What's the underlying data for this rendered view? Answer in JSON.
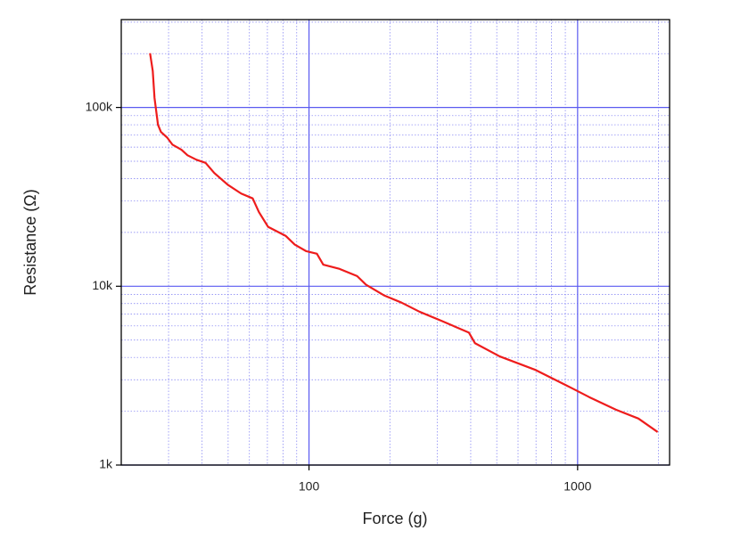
{
  "chart_data": {
    "type": "line",
    "xlabel": "Force (g)",
    "ylabel": "Resistance (Ω)",
    "x": [
      25.6,
      26.2,
      26.6,
      27.4,
      28.1,
      29.7,
      31,
      33.5,
      35.3,
      38.1,
      41.2,
      44.4,
      49.8,
      55.9,
      61.7,
      65.1,
      70.4,
      82,
      88.5,
      97.7,
      107,
      113,
      130,
      151,
      163,
      190,
      221,
      258,
      312,
      394,
      415,
      513,
      698,
      948,
      1104,
      1389,
      1684,
      1986
    ],
    "series": [
      {
        "name": "Resistance",
        "color": "#ee1c1c",
        "values": [
          201000,
          160000,
          113000,
          80000,
          73000,
          67600,
          62000,
          58000,
          54000,
          51000,
          49000,
          43000,
          37000,
          33000,
          31000,
          26000,
          21500,
          19100,
          17100,
          15700,
          15200,
          13200,
          12500,
          11400,
          10200,
          8900,
          8100,
          7200,
          6400,
          5500,
          4800,
          4050,
          3400,
          2700,
          2400,
          2040,
          1820,
          1530
        ]
      }
    ],
    "xscale": "log",
    "yscale": "log",
    "xlim": [
      20,
      2200
    ],
    "ylim": [
      1000,
      310000
    ],
    "xticks": [
      100,
      1000
    ],
    "yticks": [
      {
        "value": 1000,
        "label": "1k"
      },
      {
        "value": 10000,
        "label": "10k"
      },
      {
        "value": 100000,
        "label": "100k"
      }
    ],
    "grid": true,
    "grid_color": "#5a5af0"
  }
}
